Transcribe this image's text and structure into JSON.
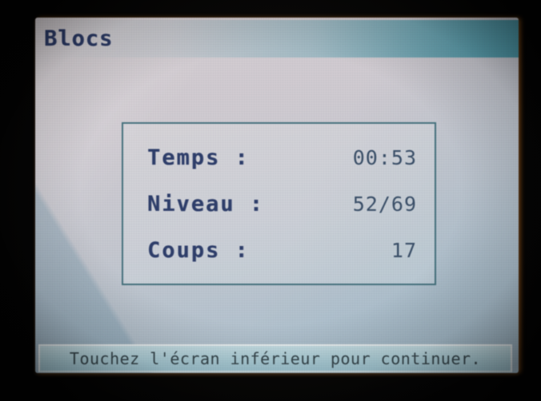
{
  "app": {
    "title": "Blocs"
  },
  "stats": {
    "rows": [
      {
        "label": "Temps :",
        "value": "00:53"
      },
      {
        "label": "Niveau :",
        "value": "52/69"
      },
      {
        "label": "Coups :",
        "value": "17"
      }
    ]
  },
  "footer": {
    "message": "Touchez l'écran inférieur pour continuer."
  },
  "colors": {
    "title_text": "#2b3a66",
    "label_text": "#2d3d6a",
    "value_text": "#3a4f68",
    "box_border": "#46727e",
    "titlebar_teal": "#4a96a6",
    "footer_fill": "#b5d7e0",
    "footer_text": "#37474d",
    "screen_base": "#c7cad2"
  }
}
